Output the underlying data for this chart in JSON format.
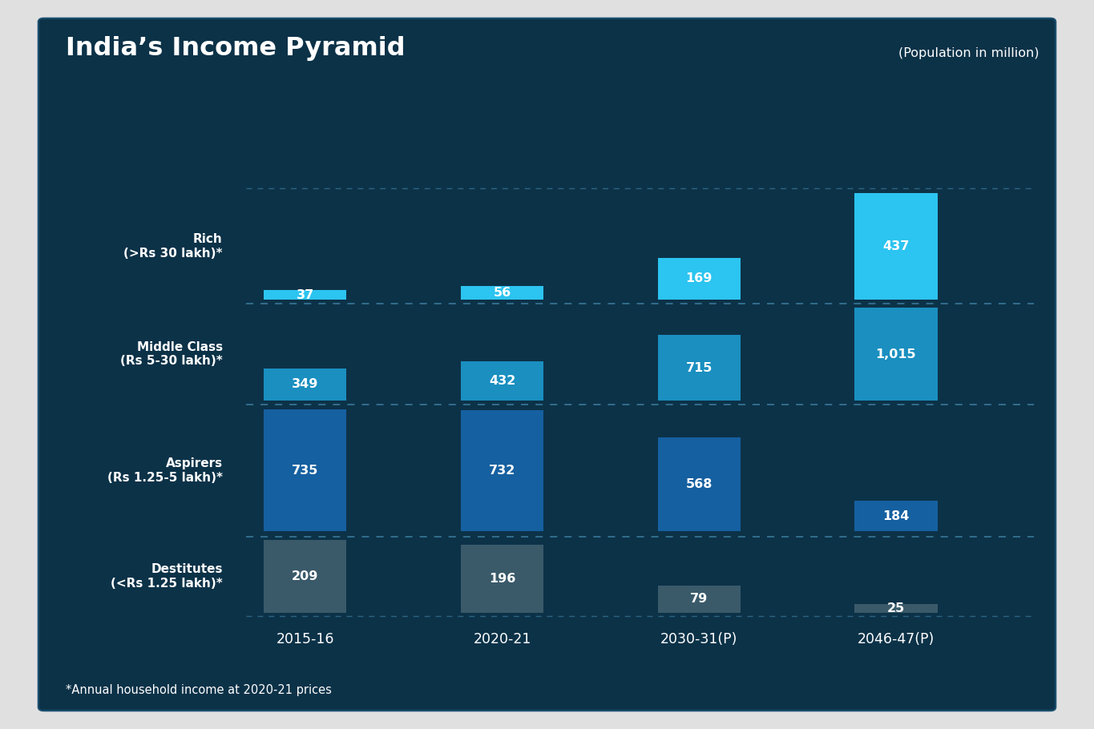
{
  "title": "India’s Income Pyramid",
  "subtitle": "(Population in million)",
  "footnote": "*Annual household income at 2020-21 prices",
  "years": [
    "2015-16",
    "2020-21",
    "2030-31(P)",
    "2046-47(P)"
  ],
  "data": {
    "rich": [
      37,
      56,
      169,
      437
    ],
    "middle": [
      349,
      432,
      715,
      1015
    ],
    "aspirers": [
      735,
      732,
      568,
      184
    ],
    "destitutes": [
      209,
      196,
      79,
      25
    ]
  },
  "colors": {
    "rich": "#2cc4f0",
    "middle": "#1a8fc0",
    "aspirers": "#1560a0",
    "destitutes": "#3a5a6a",
    "background": "#0c3248",
    "text": "#ffffff",
    "dashed_line": "#3a7a9a"
  },
  "figsize": [
    13.65,
    9.1
  ],
  "dpi": 100,
  "outer_bg": "#e0e0e0"
}
